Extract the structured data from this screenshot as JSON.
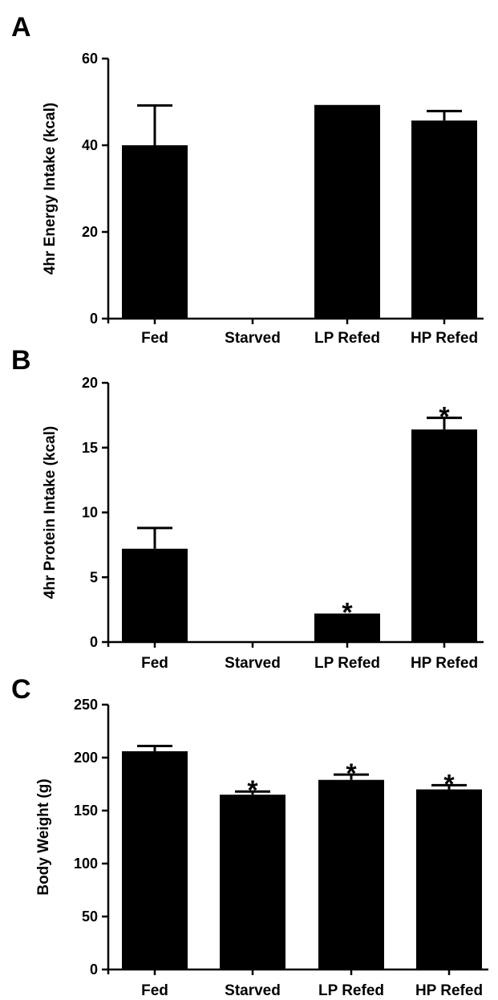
{
  "chart_data": [
    {
      "type": "bar",
      "panel": "A",
      "ylabel": "4hr Energy  Intake (kcal)",
      "ylim": [
        0,
        60
      ],
      "yticks": [
        0,
        20,
        40,
        60
      ],
      "categories": [
        "Fed",
        "Starved",
        "LP Refed",
        "HP Refed"
      ],
      "values": [
        40,
        0,
        49.3,
        45.7
      ],
      "errors": [
        9.2,
        0,
        0,
        2.2
      ],
      "significance": [
        "",
        "",
        "",
        ""
      ]
    },
    {
      "type": "bar",
      "panel": "B",
      "ylabel": "4hr Protein Intake (kcal)",
      "ylim": [
        0,
        20
      ],
      "yticks": [
        0,
        5,
        10,
        15,
        20
      ],
      "categories": [
        "Fed",
        "Starved",
        "LP Refed",
        "HP Refed"
      ],
      "values": [
        7.2,
        0,
        2.2,
        16.4
      ],
      "errors": [
        1.6,
        0,
        0,
        0.9
      ],
      "significance": [
        "",
        "",
        "*",
        "*"
      ]
    },
    {
      "type": "bar",
      "panel": "C",
      "ylabel": "Body Weight (g)",
      "ylim": [
        0,
        250
      ],
      "yticks": [
        0,
        50,
        100,
        150,
        200,
        250
      ],
      "categories": [
        "Fed",
        "Starved",
        "LP Refed",
        "HP Refed"
      ],
      "values": [
        206,
        165,
        179,
        170
      ],
      "errors": [
        5,
        3,
        5,
        4
      ],
      "significance": [
        "",
        "*",
        "*",
        "*"
      ]
    }
  ],
  "bar_color": "#000000"
}
